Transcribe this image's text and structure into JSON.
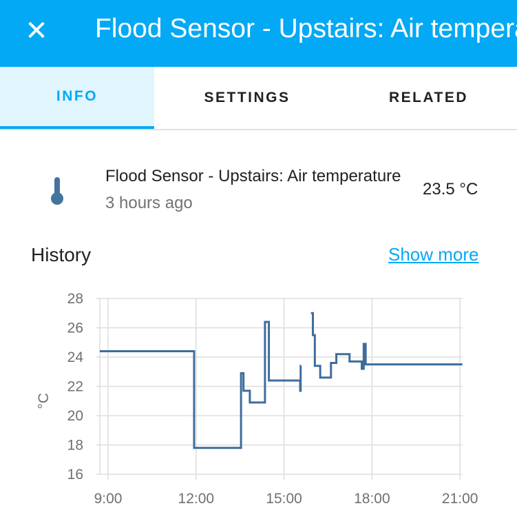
{
  "header": {
    "title": "Flood Sensor - Upstairs: Air temperature",
    "close_icon": "close-icon"
  },
  "tabs": [
    {
      "label": "INFO",
      "active": true
    },
    {
      "label": "SETTINGS"
    },
    {
      "label": "RELATED"
    }
  ],
  "entity": {
    "icon": "thermometer-icon",
    "name": "Flood Sensor - Upstairs: Air temperature",
    "last_changed": "3 hours ago",
    "state": "23.5 °C"
  },
  "history": {
    "title": "History",
    "show_more": "Show more"
  },
  "chart_data": {
    "type": "line",
    "step": true,
    "ylabel": "°C",
    "ylim": [
      16,
      28
    ],
    "xlim": [
      "8:43",
      "21:05"
    ],
    "yticks": [
      "16",
      "18",
      "20",
      "22",
      "24",
      "26",
      "28"
    ],
    "xticks": [
      "9:00",
      "12:00",
      "15:00",
      "18:00",
      "21:00"
    ],
    "grid": true,
    "color": "#3e6d9c",
    "segments": [
      [
        [
          "8:43",
          24.4
        ],
        [
          "11:56",
          17.8
        ],
        [
          "13:32",
          22.9
        ],
        [
          "13:37",
          21.7
        ],
        [
          "13:50",
          20.9
        ],
        [
          "14:21",
          26.4
        ],
        [
          "14:29",
          22.4
        ],
        [
          "15:33",
          21.7
        ],
        [
          "15:34",
          23.4
        ],
        [
          "15:35",
          23.4
        ]
      ],
      [
        [
          "15:55",
          27.0
        ],
        [
          "15:59",
          25.5
        ],
        [
          "16:03",
          23.4
        ],
        [
          "16:14",
          22.6
        ],
        [
          "16:36",
          23.6
        ],
        [
          "16:47",
          24.2
        ],
        [
          "17:14",
          23.7
        ],
        [
          "17:39",
          23.2
        ],
        [
          "17:43",
          24.9
        ],
        [
          "17:47",
          23.5
        ],
        [
          "21:05",
          23.5
        ]
      ]
    ]
  }
}
